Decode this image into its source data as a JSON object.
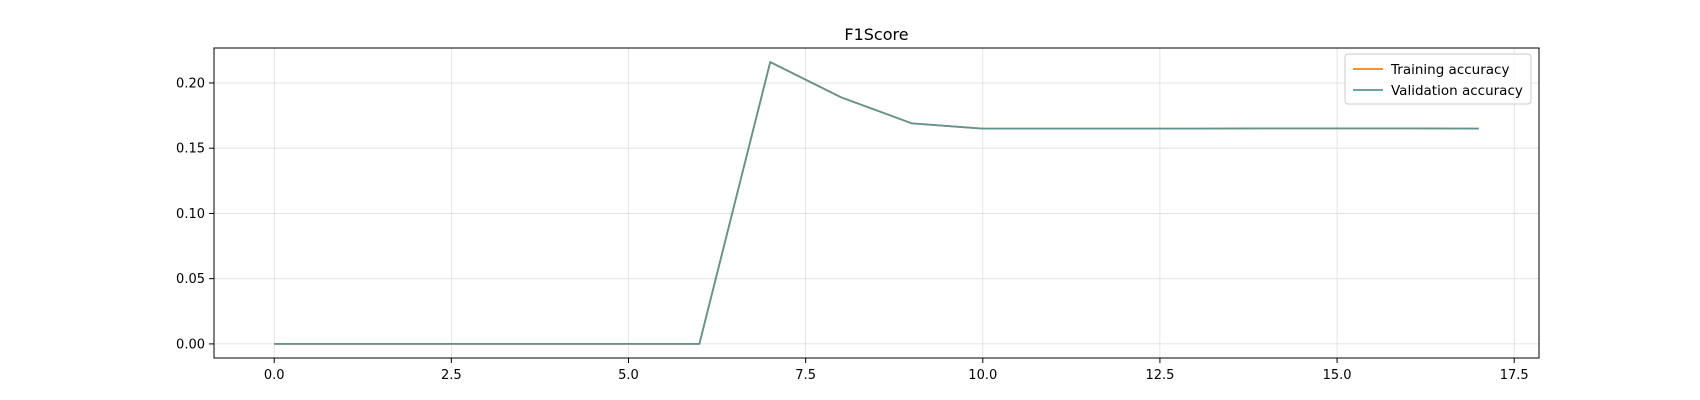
{
  "chart_data": {
    "type": "line",
    "title": "F1Score",
    "xlabel": "",
    "ylabel": "",
    "xlim": [
      -0.85,
      17.85
    ],
    "ylim": [
      -0.0108,
      0.2268
    ],
    "xticks": [
      0.0,
      2.5,
      5.0,
      7.5,
      10.0,
      12.5,
      15.0,
      17.5
    ],
    "xtick_labels": [
      "0.0",
      "2.5",
      "5.0",
      "7.5",
      "10.0",
      "12.5",
      "15.0",
      "17.5"
    ],
    "yticks": [
      0.0,
      0.05,
      0.1,
      0.15,
      0.2
    ],
    "ytick_labels": [
      "0.00",
      "0.05",
      "0.10",
      "0.15",
      "0.20"
    ],
    "grid": true,
    "legend_position": "top-right",
    "x": [
      0,
      1,
      2,
      3,
      4,
      5,
      6,
      7,
      8,
      9,
      10,
      11,
      12,
      13,
      14,
      15,
      16,
      17
    ],
    "series": [
      {
        "name": "Training accuracy",
        "color": "#ff7f0e",
        "values": [
          0,
          0,
          0,
          0,
          0,
          0,
          0,
          0.216,
          0.189,
          0.169,
          0.165,
          0.165,
          0.165,
          0.165,
          0.1652,
          0.1652,
          0.1652,
          0.165
        ]
      },
      {
        "name": "Validation accuracy",
        "color": "#5f9490",
        "values": [
          0,
          0,
          0,
          0,
          0,
          0,
          0,
          0.216,
          0.189,
          0.169,
          0.165,
          0.165,
          0.165,
          0.165,
          0.1652,
          0.1652,
          0.1652,
          0.165
        ]
      }
    ]
  }
}
